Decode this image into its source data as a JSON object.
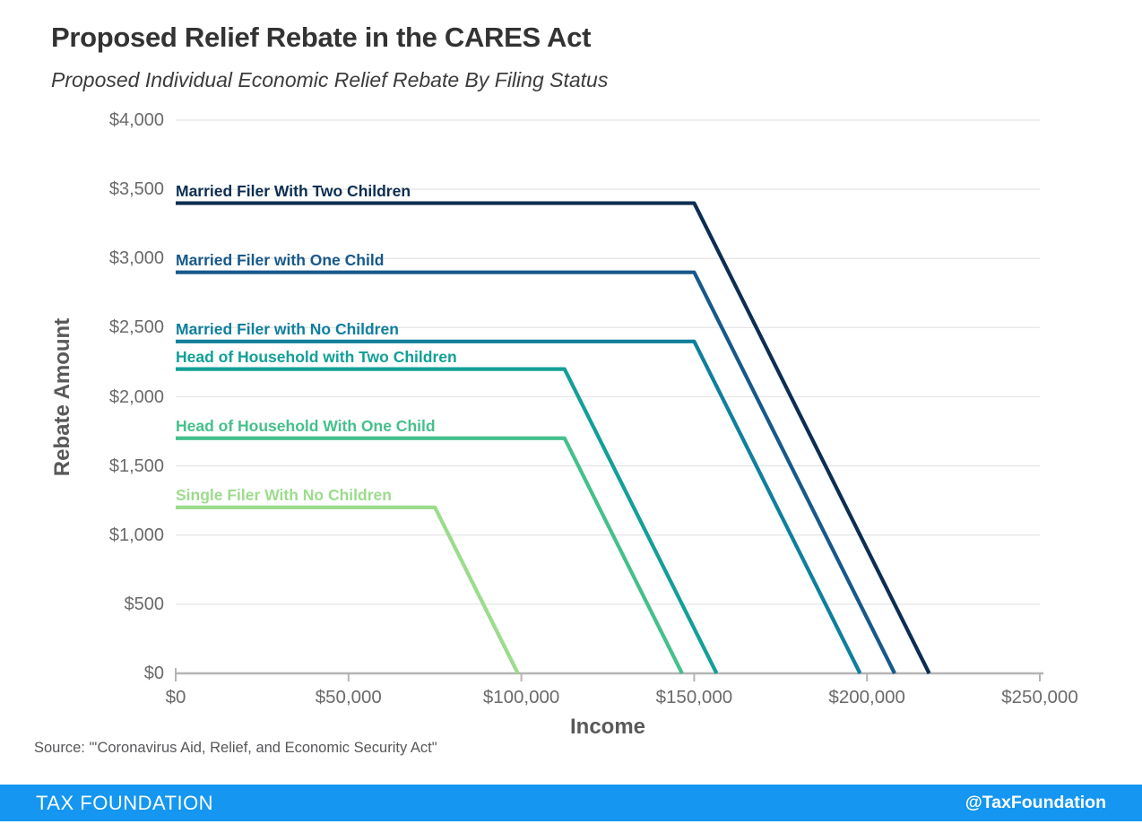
{
  "chart_data": {
    "type": "line",
    "title": "Proposed Relief Rebate in the CARES Act",
    "subtitle": "Proposed Individual Economic Relief Rebate By Filing Status",
    "xlabel": "Income",
    "ylabel": "Rebate Amount",
    "xlim": [
      0,
      250000
    ],
    "ylim": [
      0,
      4000
    ],
    "grid": "horizontal",
    "legend_position": "inline-labels-above-lines",
    "x_ticks": [
      {
        "value": 0,
        "label": "$0"
      },
      {
        "value": 50000,
        "label": "$50,000"
      },
      {
        "value": 100000,
        "label": "$100,000"
      },
      {
        "value": 150000,
        "label": "$150,000"
      },
      {
        "value": 200000,
        "label": "$200,000"
      },
      {
        "value": 250000,
        "label": "$250,000"
      }
    ],
    "y_ticks": [
      {
        "value": 0,
        "label": "$0"
      },
      {
        "value": 500,
        "label": "$500"
      },
      {
        "value": 1000,
        "label": "$1,000"
      },
      {
        "value": 1500,
        "label": "$1,500"
      },
      {
        "value": 2000,
        "label": "$2,000"
      },
      {
        "value": 2500,
        "label": "$2,500"
      },
      {
        "value": 3000,
        "label": "$3,000"
      },
      {
        "value": 3500,
        "label": "$3,500"
      },
      {
        "value": 4000,
        "label": "$4,000"
      }
    ],
    "series": [
      {
        "name": "Married Filer With Two Children",
        "color": "#0d2e52",
        "points": [
          [
            0,
            3400
          ],
          [
            150000,
            3400
          ],
          [
            218000,
            0
          ]
        ]
      },
      {
        "name": "Married Filer with One Child",
        "color": "#17598c",
        "points": [
          [
            0,
            2900
          ],
          [
            150000,
            2900
          ],
          [
            208000,
            0
          ]
        ]
      },
      {
        "name": "Married Filer with No Children",
        "color": "#0f7f9e",
        "points": [
          [
            0,
            2400
          ],
          [
            150000,
            2400
          ],
          [
            198000,
            0
          ]
        ]
      },
      {
        "name": "Head of Household with Two Children",
        "color": "#12a097",
        "points": [
          [
            0,
            2200
          ],
          [
            112500,
            2200
          ],
          [
            156500,
            0
          ]
        ]
      },
      {
        "name": "Head of Household With One Child",
        "color": "#45c08c",
        "points": [
          [
            0,
            1700
          ],
          [
            112500,
            1700
          ],
          [
            146500,
            0
          ]
        ]
      },
      {
        "name": "Single Filer With No Children",
        "color": "#9cdc8c",
        "points": [
          [
            0,
            1200
          ],
          [
            75000,
            1200
          ],
          [
            99000,
            0
          ]
        ]
      }
    ],
    "style": {
      "gridline_color": "#e5e5e5",
      "axis_color": "#b4b4b4",
      "tick_label_color": "#6a6a6a"
    }
  },
  "source": "Source: \"'Coronavirus Aid, Relief, and Economic Security Act\"",
  "footer": {
    "brand": "TAX FOUNDATION",
    "handle": "@TaxFoundation",
    "bg_color": "#1496f1"
  }
}
